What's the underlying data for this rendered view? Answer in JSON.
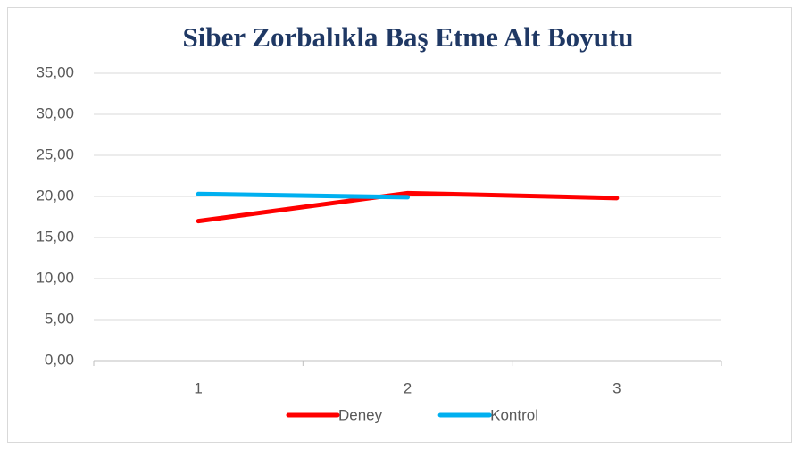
{
  "chart_data": {
    "type": "line",
    "title": "Siber Zorbalıkla Baş Etme Alt Boyutu",
    "categories": [
      "1",
      "2",
      "3"
    ],
    "series": [
      {
        "name": "Deney",
        "color": "#ff0000",
        "values": [
          17.0,
          20.4,
          19.8
        ]
      },
      {
        "name": "Kontrol",
        "color": "#00b0f0",
        "values": [
          20.3,
          19.9,
          null
        ]
      }
    ],
    "ylim": [
      0,
      35
    ],
    "yticks": [
      {
        "value": 0,
        "label": "0,00"
      },
      {
        "value": 5,
        "label": "5,00"
      },
      {
        "value": 10,
        "label": "10,00"
      },
      {
        "value": 15,
        "label": "15,00"
      },
      {
        "value": 20,
        "label": "20,00"
      },
      {
        "value": 25,
        "label": "25,00"
      },
      {
        "value": 30,
        "label": "30,00"
      },
      {
        "value": 35,
        "label": "35,00"
      }
    ],
    "grid": true,
    "legend": "bottom"
  }
}
